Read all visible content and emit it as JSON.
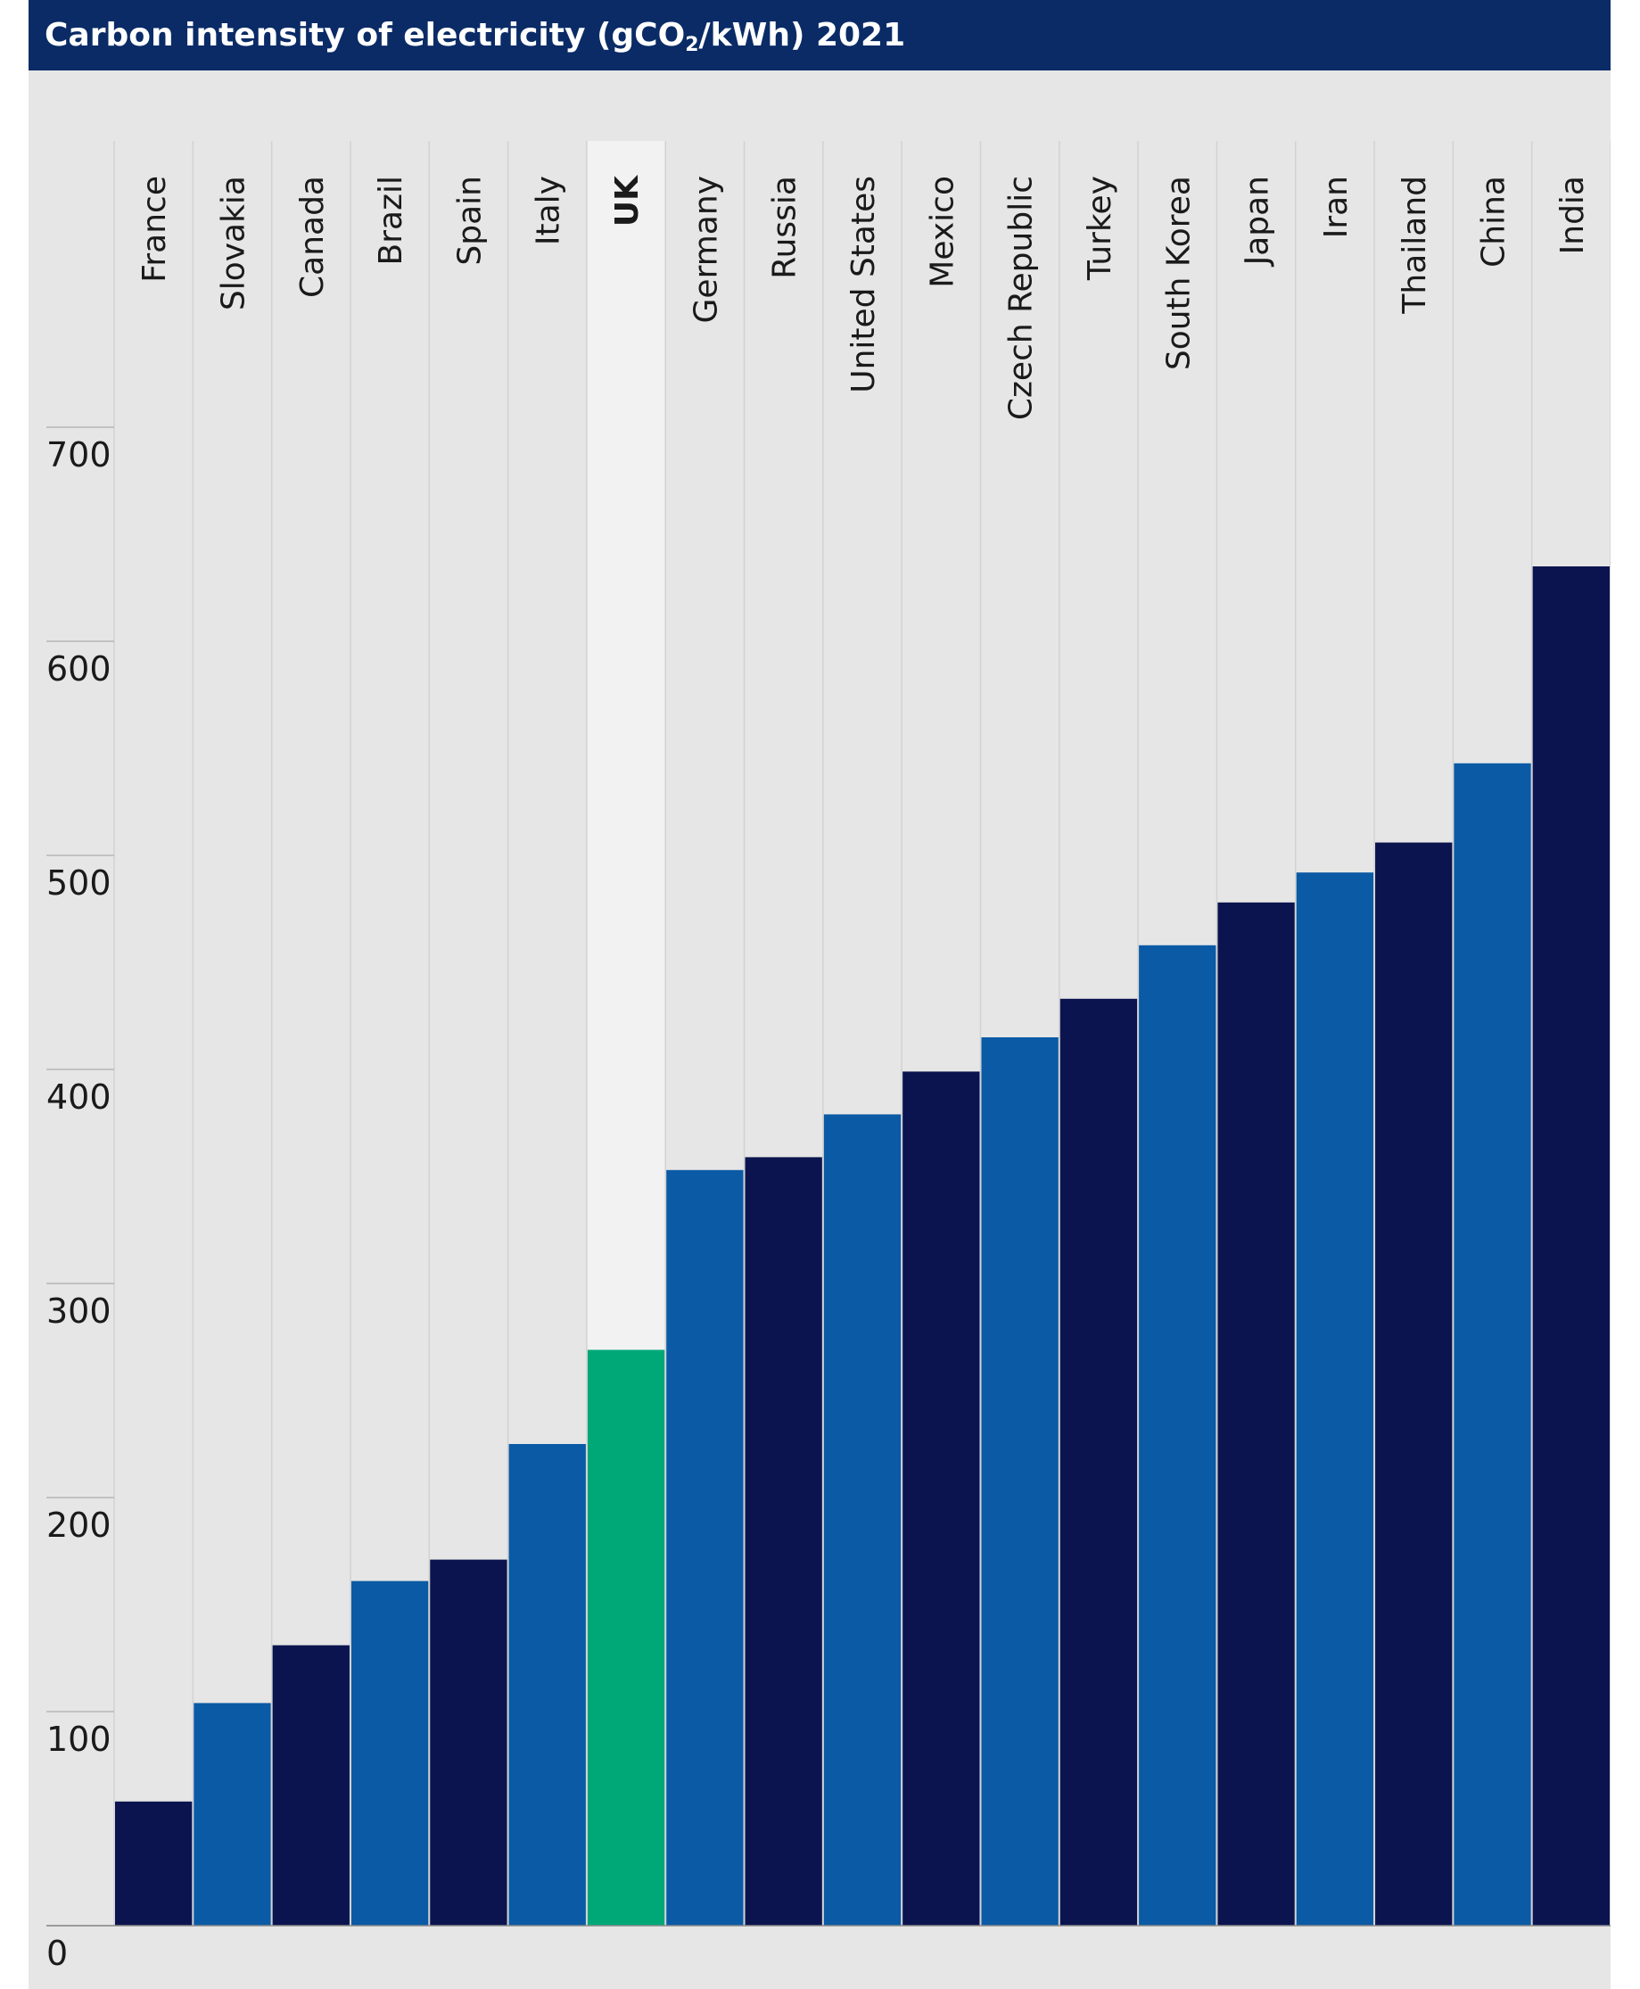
{
  "title": {
    "prefix": "Carbon intensity of electricity (gCO",
    "subscript": "2",
    "suffix": "/kWh) 2021"
  },
  "colors": {
    "title_bg": "#0a2b66",
    "panel_bg": "#e6e6e6",
    "dark_navy": "#0b144e",
    "mid_blue": "#0a5aa5",
    "uk_green": "#00a878",
    "uk_highlight": "#f2f2f2"
  },
  "chart_data": {
    "type": "bar",
    "title": "Carbon intensity of electricity (gCO2/kWh) 2021",
    "categories": [
      "France",
      "Slovakia",
      "Canada",
      "Brazil",
      "Spain",
      "Italy",
      "UK",
      "Germany",
      "Russia",
      "United States",
      "Mexico",
      "Czech Republic",
      "Turkey",
      "South Korea",
      "Japan",
      "Iran",
      "Thailand",
      "China",
      "India"
    ],
    "values": [
      58,
      104,
      131,
      161,
      171,
      225,
      269,
      353,
      359,
      379,
      399,
      415,
      433,
      458,
      478,
      492,
      506,
      543,
      635
    ],
    "bar_colors": [
      "dark_navy",
      "mid_blue",
      "dark_navy",
      "mid_blue",
      "dark_navy",
      "mid_blue",
      "uk_green",
      "mid_blue",
      "dark_navy",
      "mid_blue",
      "dark_navy",
      "mid_blue",
      "dark_navy",
      "mid_blue",
      "dark_navy",
      "mid_blue",
      "dark_navy",
      "mid_blue",
      "dark_navy"
    ],
    "highlight_category": "UK",
    "yticks": [
      0,
      100,
      200,
      300,
      400,
      500,
      600,
      700
    ],
    "ylim": [
      0,
      700
    ],
    "xlabel": "",
    "ylabel": "",
    "grid": "vertical separators",
    "legend": "none"
  }
}
